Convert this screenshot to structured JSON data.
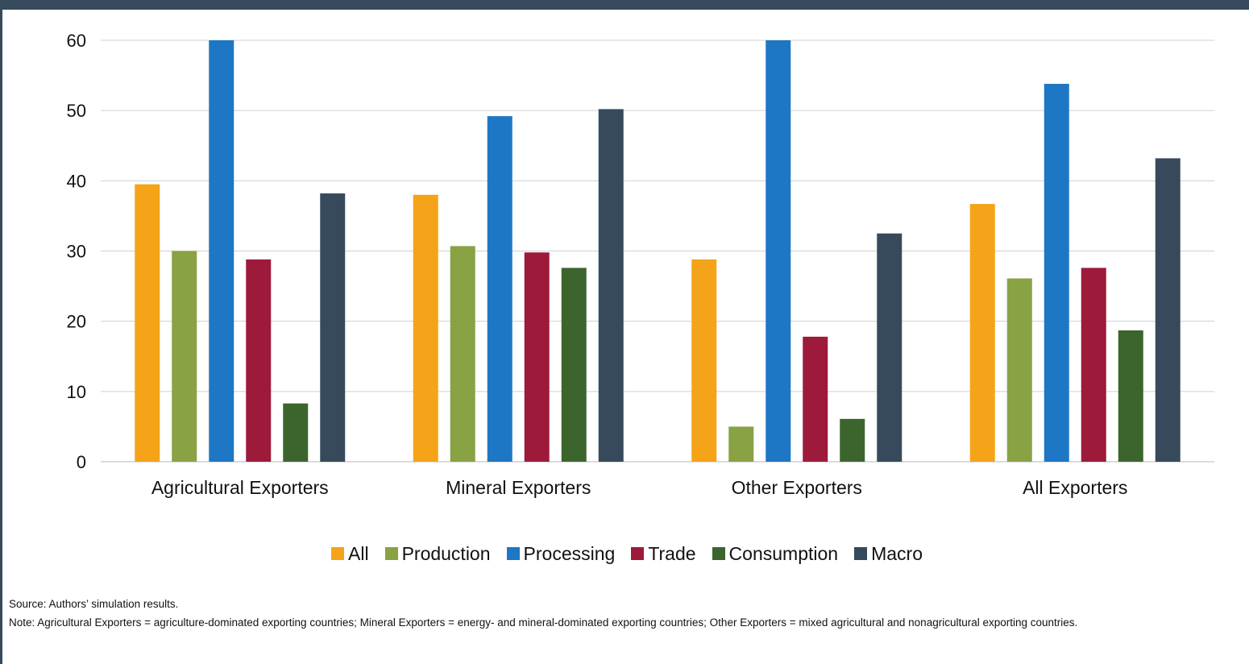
{
  "chart_data": {
    "type": "bar",
    "categories": [
      "Agricultural Exporters",
      "Mineral Exporters",
      "Other Exporters",
      "All Exporters"
    ],
    "series": [
      {
        "name": "All",
        "color": "#f5a318",
        "values": [
          39.5,
          38.0,
          28.8,
          36.7
        ]
      },
      {
        "name": "Production",
        "color": "#88a244",
        "values": [
          30.0,
          30.7,
          5.0,
          26.1
        ]
      },
      {
        "name": "Processing",
        "color": "#1e77c4",
        "values": [
          60.0,
          49.2,
          60.0,
          53.8
        ]
      },
      {
        "name": "Trade",
        "color": "#9d1a3b",
        "values": [
          28.8,
          29.8,
          17.8,
          27.6
        ]
      },
      {
        "name": "Consumption",
        "color": "#3b652d",
        "values": [
          8.3,
          27.6,
          6.1,
          18.7
        ]
      },
      {
        "name": "Macro",
        "color": "#364a5c",
        "values": [
          38.2,
          50.2,
          32.5,
          43.2
        ]
      }
    ],
    "yticks": [
      0,
      10,
      20,
      30,
      40,
      50,
      60
    ],
    "ylim": [
      0,
      60
    ],
    "grid": true,
    "legend_position": "bottom",
    "title": "",
    "xlabel": "",
    "ylabel": ""
  },
  "footer": {
    "source": "Source: Authors’ simulation results.",
    "note": "Note: Agricultural Exporters = agriculture-dominated exporting countries; Mineral Exporters = energy- and mineral-dominated exporting countries; Other Exporters = mixed agricultural and nonagricultural exporting countries."
  }
}
